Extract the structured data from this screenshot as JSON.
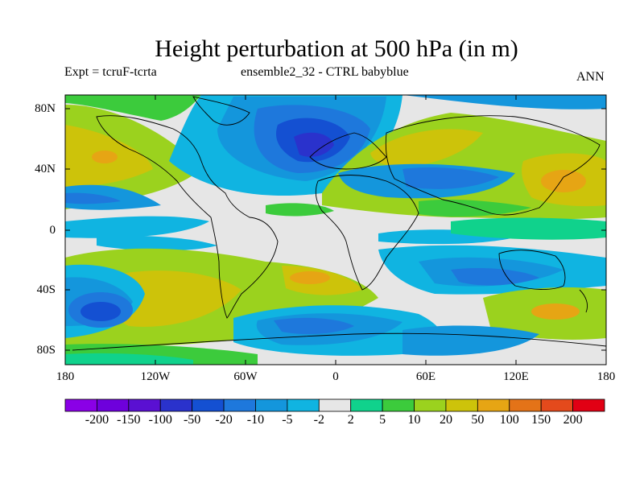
{
  "title": "Height perturbation at 500 hPa (in m)",
  "subtitle_left": "Expt = tcruF-tcrta",
  "subtitle_center": "ensemble2_32 - CTRL babyblue",
  "subtitle_right": "ANN",
  "y_ticks": [
    "80N",
    "40N",
    "0",
    "40S",
    "80S"
  ],
  "x_ticks": [
    "180",
    "120W",
    "60W",
    "0",
    "60E",
    "120E",
    "180"
  ],
  "colorbar": {
    "colors": [
      "#8a00e6",
      "#6e00dc",
      "#5a10d2",
      "#2a32cc",
      "#1450d2",
      "#1e78dc",
      "#1496dc",
      "#10b4e1",
      "#e6e6e6",
      "#10d28c",
      "#3ccb3c",
      "#9bd21e",
      "#cdc30a",
      "#e6a514",
      "#e47318",
      "#e44a1c",
      "#e10014"
    ],
    "labels": [
      "-200",
      "-150",
      "-100",
      "-50",
      "-20",
      "-10",
      "-5",
      "-2",
      "2",
      "5",
      "10",
      "20",
      "50",
      "100",
      "150",
      "200"
    ]
  },
  "map": {
    "lon_range": [
      -180,
      180
    ],
    "lat_range": [
      -90,
      90
    ],
    "background_color": "#e6e6e6"
  }
}
